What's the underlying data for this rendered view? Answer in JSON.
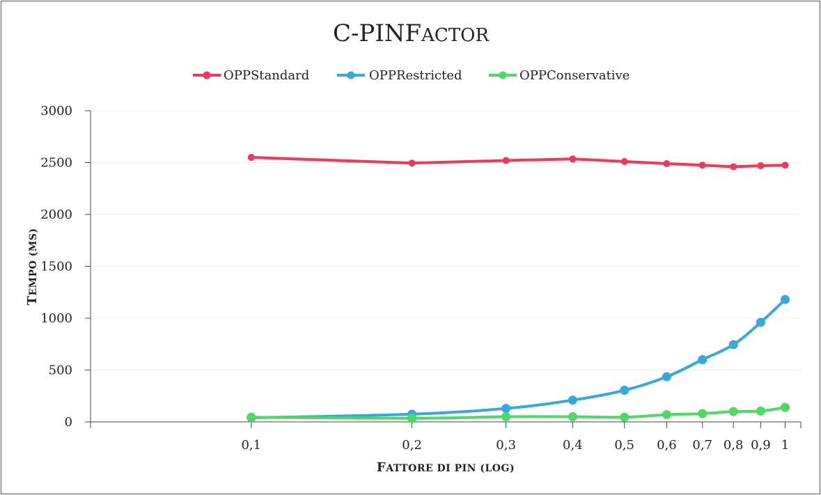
{
  "chart_data": {
    "type": "line",
    "title_main": "C-PINF",
    "title_smallcaps": "ACTOR",
    "xlabel_main": "F",
    "xlabel_smallcaps": "ATTORE DI PIN (LOG)",
    "ylabel_main": "T",
    "ylabel_smallcaps": "EMPO (MS)",
    "x_scale": "log",
    "x": [
      0.1,
      0.2,
      0.3,
      0.4,
      0.5,
      0.6,
      0.7,
      0.8,
      0.9,
      1
    ],
    "x_tick_labels": [
      "0,1",
      "0,2",
      "0,3",
      "0,4",
      "0,5",
      "0,6",
      "0,7",
      "0,8",
      "0,9",
      "1"
    ],
    "ylim": [
      0,
      3000
    ],
    "y_ticks": [
      0,
      500,
      1000,
      1500,
      2000,
      2500,
      3000
    ],
    "y_tick_labels": [
      "0",
      "500",
      "1000",
      "1500",
      "2000",
      "2500",
      "3000"
    ],
    "grid": "horizontal",
    "legend_position": "top",
    "series": [
      {
        "name": "OPPStandard",
        "color": "#f2385a",
        "values": [
          2550,
          2495,
          2520,
          2535,
          2510,
          2490,
          2475,
          2460,
          2470,
          2475
        ]
      },
      {
        "name": "OPPRestricted",
        "color": "#36a9dc",
        "values": [
          40,
          75,
          130,
          210,
          305,
          435,
          600,
          745,
          960,
          1180
        ]
      },
      {
        "name": "OPPConservative",
        "color": "#4cd964",
        "values": [
          45,
          35,
          50,
          50,
          45,
          70,
          80,
          100,
          105,
          140
        ]
      }
    ]
  }
}
